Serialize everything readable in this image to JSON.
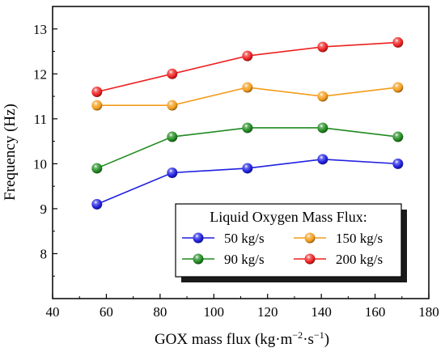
{
  "chart_data": {
    "type": "line",
    "xlabel": "GOX mass flux (kg·m⁻²·s⁻¹)",
    "xlabel_parts": {
      "base": "GOX mass flux (kg·m",
      "exp1": "−2",
      "mid": "·s",
      "exp2": "−1",
      "tail": ")"
    },
    "ylabel": "Frequency (Hz)",
    "xlim": [
      40,
      180
    ],
    "ylim": [
      7,
      13.5
    ],
    "xticks": [
      40,
      60,
      80,
      100,
      120,
      140,
      160,
      180
    ],
    "yticks": [
      8,
      9,
      10,
      11,
      12,
      13
    ],
    "grid": false,
    "legend": {
      "title": "Liquid Oxygen Mass Flux:",
      "placement": "bottom-right"
    },
    "x": [
      56.5,
      84.5,
      112.5,
      140.5,
      168.5
    ],
    "series": [
      {
        "name": "50 kg/s",
        "color": "#1f1fe0",
        "values": [
          9.1,
          9.8,
          9.9,
          10.1,
          10.0
        ]
      },
      {
        "name": "90 kg/s",
        "color": "#1f8a1f",
        "values": [
          9.9,
          10.6,
          10.8,
          10.8,
          10.6
        ]
      },
      {
        "name": "150 kg/s",
        "color": "#f39c1a",
        "values": [
          11.3,
          11.3,
          11.7,
          11.5,
          11.7
        ]
      },
      {
        "name": "200 kg/s",
        "color": "#ee2020",
        "values": [
          11.6,
          12.0,
          12.4,
          12.6,
          12.7
        ]
      }
    ]
  }
}
